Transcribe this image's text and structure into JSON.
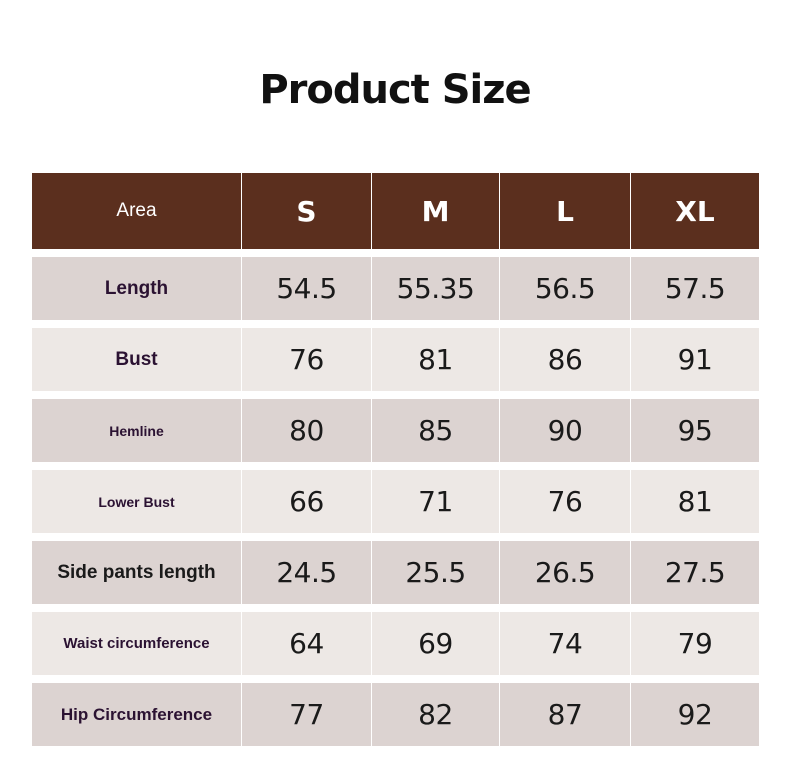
{
  "title": "Product Size",
  "header": {
    "area_label": "Area",
    "sizes": [
      "S",
      "M",
      "L",
      "XL"
    ]
  },
  "rows": [
    {
      "label": "Length",
      "values": [
        "54.5",
        "55.35",
        "56.5",
        "57.5"
      ]
    },
    {
      "label": "Bust",
      "values": [
        "76",
        "81",
        "86",
        "91"
      ]
    },
    {
      "label": "Hemline",
      "values": [
        "80",
        "85",
        "90",
        "95"
      ]
    },
    {
      "label": "Lower Bust",
      "values": [
        "66",
        "71",
        "76",
        "81"
      ]
    },
    {
      "label": "Side pants length",
      "values": [
        "24.5",
        "25.5",
        "26.5",
        "27.5"
      ]
    },
    {
      "label": "Waist circumference",
      "values": [
        "64",
        "69",
        "74",
        "79"
      ]
    },
    {
      "label": "Hip Circumference",
      "values": [
        "77",
        "82",
        "87",
        "92"
      ]
    }
  ],
  "colors": {
    "header_bg": "#5b2f1e",
    "row_dark": "#dcd3d1",
    "row_light": "#ede8e5",
    "label_text": "#2b1232"
  }
}
